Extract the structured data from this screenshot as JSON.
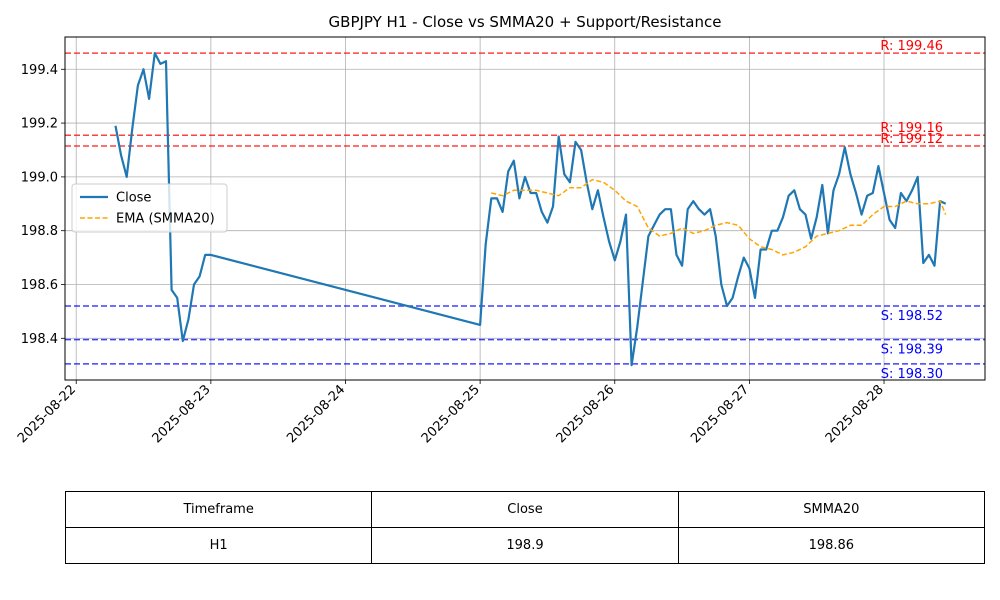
{
  "chart_data": {
    "type": "line",
    "title": "GBPJPY H1 - Close vs SMMA20 + Support/Resistance",
    "xlabel": "",
    "ylabel": "",
    "x_ticks": [
      "2025-08-22",
      "2025-08-23",
      "2025-08-24",
      "2025-08-25",
      "2025-08-26",
      "2025-08-27",
      "2025-08-28"
    ],
    "y_ticks": [
      "198.4",
      "198.6",
      "198.8",
      "199.0",
      "199.2",
      "199.4"
    ],
    "ylim": [
      198.245,
      199.52
    ],
    "xlim_days": [
      "2025-08-21T22:00",
      "2025-08-28T18:00"
    ],
    "grid": true,
    "legend_position": "center-left",
    "series": [
      {
        "name": "Close",
        "color": "#1f77b4",
        "x": [
          "2025-08-22T07:00",
          "2025-08-22T08:00",
          "2025-08-22T09:00",
          "2025-08-22T10:00",
          "2025-08-22T11:00",
          "2025-08-22T12:00",
          "2025-08-22T13:00",
          "2025-08-22T14:00",
          "2025-08-22T15:00",
          "2025-08-22T16:00",
          "2025-08-22T17:00",
          "2025-08-22T18:00",
          "2025-08-22T19:00",
          "2025-08-22T20:00",
          "2025-08-22T21:00",
          "2025-08-22T22:00",
          "2025-08-22T23:00",
          "2025-08-23T00:00",
          "2025-08-25T00:00",
          "2025-08-25T01:00",
          "2025-08-25T02:00",
          "2025-08-25T03:00",
          "2025-08-25T04:00",
          "2025-08-25T05:00",
          "2025-08-25T06:00",
          "2025-08-25T07:00",
          "2025-08-25T08:00",
          "2025-08-25T09:00",
          "2025-08-25T10:00",
          "2025-08-25T11:00",
          "2025-08-25T12:00",
          "2025-08-25T13:00",
          "2025-08-25T14:00",
          "2025-08-25T15:00",
          "2025-08-25T16:00",
          "2025-08-25T17:00",
          "2025-08-25T18:00",
          "2025-08-25T19:00",
          "2025-08-25T20:00",
          "2025-08-25T21:00",
          "2025-08-25T22:00",
          "2025-08-25T23:00",
          "2025-08-26T00:00",
          "2025-08-26T01:00",
          "2025-08-26T02:00",
          "2025-08-26T03:00",
          "2025-08-26T04:00",
          "2025-08-26T05:00",
          "2025-08-26T06:00",
          "2025-08-26T07:00",
          "2025-08-26T08:00",
          "2025-08-26T09:00",
          "2025-08-26T10:00",
          "2025-08-26T11:00",
          "2025-08-26T12:00",
          "2025-08-26T13:00",
          "2025-08-26T14:00",
          "2025-08-26T15:00",
          "2025-08-26T16:00",
          "2025-08-26T17:00",
          "2025-08-26T18:00",
          "2025-08-26T19:00",
          "2025-08-26T20:00",
          "2025-08-26T21:00",
          "2025-08-26T22:00",
          "2025-08-26T23:00",
          "2025-08-27T00:00",
          "2025-08-27T01:00",
          "2025-08-27T02:00",
          "2025-08-27T03:00",
          "2025-08-27T04:00",
          "2025-08-27T05:00",
          "2025-08-27T06:00",
          "2025-08-27T07:00",
          "2025-08-27T08:00",
          "2025-08-27T09:00",
          "2025-08-27T10:00",
          "2025-08-27T11:00",
          "2025-08-27T12:00",
          "2025-08-27T13:00",
          "2025-08-27T14:00",
          "2025-08-27T15:00",
          "2025-08-27T16:00",
          "2025-08-27T17:00",
          "2025-08-27T18:00",
          "2025-08-27T19:00",
          "2025-08-27T20:00",
          "2025-08-27T21:00",
          "2025-08-27T22:00",
          "2025-08-27T23:00",
          "2025-08-28T00:00",
          "2025-08-28T01:00",
          "2025-08-28T02:00",
          "2025-08-28T03:00",
          "2025-08-28T04:00",
          "2025-08-28T05:00",
          "2025-08-28T06:00",
          "2025-08-28T07:00",
          "2025-08-28T08:00",
          "2025-08-28T09:00",
          "2025-08-28T10:00",
          "2025-08-28T11:00"
        ],
        "values": [
          199.19,
          199.08,
          199.0,
          199.18,
          199.34,
          199.4,
          199.29,
          199.46,
          199.42,
          199.43,
          198.58,
          198.55,
          198.39,
          198.47,
          198.6,
          198.63,
          198.71,
          198.71,
          198.45,
          198.75,
          198.92,
          198.92,
          198.87,
          199.02,
          199.06,
          198.92,
          199.0,
          198.94,
          198.94,
          198.87,
          198.83,
          198.89,
          199.15,
          199.01,
          198.98,
          199.13,
          199.1,
          198.98,
          198.88,
          198.95,
          198.85,
          198.76,
          198.69,
          198.76,
          198.86,
          198.3,
          198.44,
          198.61,
          198.78,
          198.82,
          198.86,
          198.88,
          198.88,
          198.71,
          198.67,
          198.88,
          198.91,
          198.88,
          198.86,
          198.88,
          198.78,
          198.6,
          198.52,
          198.55,
          198.63,
          198.7,
          198.66,
          198.55,
          198.73,
          198.73,
          198.8,
          198.8,
          198.85,
          198.93,
          198.95,
          198.88,
          198.86,
          198.77,
          198.85,
          198.97,
          198.79,
          198.95,
          199.01,
          199.11,
          199.01,
          198.94,
          198.86,
          198.93,
          198.94,
          199.04,
          198.94,
          198.84,
          198.81,
          198.94,
          198.91,
          198.95,
          199.0,
          198.68,
          198.71,
          198.67,
          198.91,
          198.9
        ]
      },
      {
        "name": "EMA (SMMA20)",
        "color": "#ffa500",
        "x": [
          "2025-08-25T02:00",
          "2025-08-25T04:00",
          "2025-08-25T06:00",
          "2025-08-25T08:00",
          "2025-08-25T10:00",
          "2025-08-25T12:00",
          "2025-08-25T14:00",
          "2025-08-25T16:00",
          "2025-08-25T18:00",
          "2025-08-25T20:00",
          "2025-08-25T22:00",
          "2025-08-26T00:00",
          "2025-08-26T02:00",
          "2025-08-26T04:00",
          "2025-08-26T06:00",
          "2025-08-26T08:00",
          "2025-08-26T10:00",
          "2025-08-26T12:00",
          "2025-08-26T14:00",
          "2025-08-26T16:00",
          "2025-08-26T18:00",
          "2025-08-26T20:00",
          "2025-08-26T22:00",
          "2025-08-27T00:00",
          "2025-08-27T02:00",
          "2025-08-27T04:00",
          "2025-08-27T06:00",
          "2025-08-27T08:00",
          "2025-08-27T10:00",
          "2025-08-27T12:00",
          "2025-08-27T14:00",
          "2025-08-27T16:00",
          "2025-08-27T18:00",
          "2025-08-27T20:00",
          "2025-08-27T22:00",
          "2025-08-28T00:00",
          "2025-08-28T02:00",
          "2025-08-28T04:00",
          "2025-08-28T06:00",
          "2025-08-28T08:00",
          "2025-08-28T10:00",
          "2025-08-28T11:00"
        ],
        "values": [
          198.94,
          198.93,
          198.95,
          198.95,
          198.95,
          198.94,
          198.93,
          198.96,
          198.96,
          198.99,
          198.98,
          198.95,
          198.91,
          198.89,
          198.81,
          198.78,
          198.79,
          198.81,
          198.79,
          198.8,
          198.82,
          198.83,
          198.82,
          198.77,
          198.74,
          198.73,
          198.71,
          198.72,
          198.74,
          198.78,
          198.79,
          198.8,
          198.82,
          198.82,
          198.86,
          198.89,
          198.89,
          198.91,
          198.9,
          198.9,
          198.91,
          198.86
        ]
      }
    ],
    "levels": [
      {
        "kind": "resistance",
        "label": "R: 199.46",
        "value": 199.46,
        "color": "#ff0000"
      },
      {
        "kind": "resistance",
        "label": "R: 199.16",
        "value": 199.155,
        "color": "#ff0000"
      },
      {
        "kind": "resistance",
        "label": "R: 199.12",
        "value": 199.115,
        "color": "#ff0000"
      },
      {
        "kind": "support",
        "label": "S: 198.52",
        "value": 198.52,
        "color": "#0000ff"
      },
      {
        "kind": "support",
        "label": "S: 198.39",
        "value": 198.395,
        "color": "#0000ff"
      },
      {
        "kind": "support",
        "label": "S: 198.30",
        "value": 198.305,
        "color": "#0000ff"
      }
    ]
  },
  "table": {
    "headers": [
      "Timeframe",
      "Close",
      "SMMA20"
    ],
    "rows": [
      [
        "H1",
        "198.9",
        "198.86"
      ]
    ]
  }
}
